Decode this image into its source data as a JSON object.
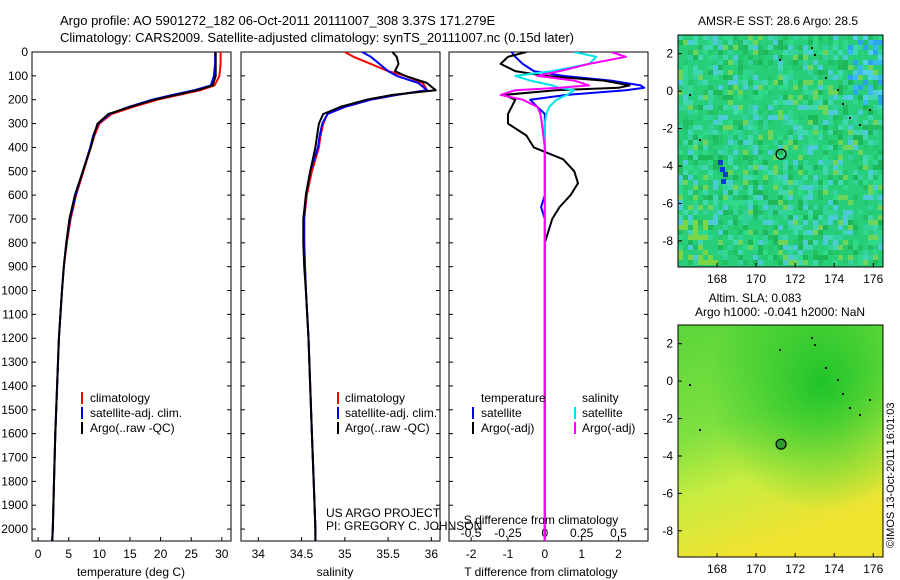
{
  "title_line1": "Argo profile: AO 5901272_182 06-Oct-2011 20111007_308 3.37S 171.279E",
  "title_line2": "Climatology: CARS2009. Satellite-adjusted climatology: synTS_20111007.nc (0.15d later)",
  "depth_ticks": [
    "0",
    "100",
    "200",
    "300",
    "400",
    "500",
    "600",
    "700",
    "800",
    "900",
    "1000",
    "1100",
    "1200",
    "1300",
    "1400",
    "1500",
    "1600",
    "1700",
    "1800",
    "1900",
    "2000"
  ],
  "credit_line1": "US ARGO PROJECT",
  "credit_line2": "PI: GREGORY C. JOHNSON",
  "timestamp": "©IMOS 13-Oct-2011 16:01:03",
  "colors": {
    "climatology": "#ff0000",
    "satellite": "#0000ff",
    "argo": "#000000",
    "sal_sat": "#00e5ee",
    "sal_argo": "#ff00ff"
  },
  "chart_data": [
    {
      "type": "line",
      "id": "temperature",
      "xlabel": "temperature (deg C)",
      "ylabel": "depth",
      "xlim": [
        -1,
        31.5
      ],
      "ylim": [
        2050,
        0
      ],
      "xticks": [
        "0",
        "5",
        "10",
        "15",
        "20",
        "25",
        "30"
      ],
      "legend": [
        "climatology",
        "satellite-adj. clim.",
        "Argo(..raw -QC)"
      ],
      "depth": [
        0,
        20,
        50,
        100,
        140,
        160,
        180,
        200,
        230,
        260,
        300,
        350,
        400,
        500,
        600,
        700,
        800,
        900,
        1000,
        1200,
        1400,
        1600,
        1800,
        2000,
        2050
      ],
      "series": [
        {
          "name": "climatology",
          "values": [
            29.8,
            29.8,
            29.8,
            29.6,
            28.8,
            26.5,
            23,
            19.5,
            15.5,
            12,
            10,
            9.2,
            8.6,
            7.4,
            6.2,
            5.3,
            4.7,
            4.2,
            3.9,
            3.4,
            3.1,
            2.8,
            2.6,
            2.4,
            2.3
          ]
        },
        {
          "name": "satellite-adj. clim.",
          "values": [
            28.9,
            28.9,
            28.9,
            28.7,
            28.2,
            25.5,
            22,
            18.6,
            14.8,
            11.7,
            9.8,
            9.0,
            8.5,
            7.3,
            6.1,
            5.2,
            4.6,
            4.2,
            3.9,
            3.4,
            3.1,
            2.8,
            2.6,
            2.4,
            2.3
          ]
        },
        {
          "name": "Argo(..raw -QC)",
          "values": [
            29.0,
            29.0,
            29.0,
            29.0,
            28.5,
            26,
            22.5,
            19,
            15,
            11.5,
            9.7,
            9.1,
            8.6,
            7.3,
            6.0,
            5.1,
            4.6,
            4.2,
            3.9,
            3.4,
            3.1,
            2.8,
            2.6,
            2.4,
            2.3
          ]
        }
      ]
    },
    {
      "type": "line",
      "id": "salinity",
      "xlabel": "salinity",
      "xlim": [
        33.8,
        36.1
      ],
      "ylim": [
        2050,
        0
      ],
      "xticks": [
        "34",
        "34.5",
        "35",
        "35.5",
        "36"
      ],
      "legend": [
        "climatology",
        "satellite-adj. clim.",
        "Argo(..raw -QC)"
      ],
      "depth": [
        0,
        20,
        50,
        80,
        100,
        130,
        160,
        180,
        200,
        230,
        260,
        300,
        350,
        400,
        500,
        600,
        700,
        800,
        900,
        1000,
        1200,
        1400,
        1600,
        1800,
        2000,
        2050
      ],
      "series": [
        {
          "name": "climatology",
          "values": [
            35.0,
            35.1,
            35.3,
            35.5,
            35.7,
            35.9,
            35.95,
            35.6,
            35.3,
            35.0,
            34.8,
            34.75,
            34.72,
            34.7,
            34.62,
            34.56,
            34.53,
            34.53,
            34.54,
            34.55,
            34.58,
            34.6,
            34.62,
            34.64,
            34.66,
            34.66
          ]
        },
        {
          "name": "satellite-adj. clim.",
          "values": [
            35.2,
            35.3,
            35.4,
            35.5,
            35.6,
            35.85,
            35.95,
            35.6,
            35.3,
            35.0,
            34.8,
            34.74,
            34.71,
            34.69,
            34.6,
            34.55,
            34.53,
            34.53,
            34.54,
            34.55,
            34.58,
            34.6,
            34.62,
            34.64,
            34.66,
            34.66
          ]
        },
        {
          "name": "Argo(..raw -QC)",
          "values": [
            35.55,
            35.6,
            35.62,
            35.58,
            35.7,
            35.95,
            36.05,
            35.55,
            35.25,
            34.95,
            34.75,
            34.7,
            34.68,
            34.66,
            34.6,
            34.55,
            34.52,
            34.52,
            34.53,
            34.55,
            34.58,
            34.6,
            34.62,
            34.64,
            34.66,
            34.66
          ]
        }
      ]
    },
    {
      "type": "line",
      "id": "differences",
      "xlabel": "T difference from climatology",
      "xlabel2": "S difference from climatology",
      "xlim": [
        -2.6,
        2.8
      ],
      "ylim": [
        2050,
        0
      ],
      "xticks_T": [
        "-2",
        "-1",
        "0",
        "1",
        "2"
      ],
      "xticks_S": [
        "-0.5",
        "-0.25",
        "0",
        "0.25",
        "0.5"
      ],
      "legend_T_title": "temperature",
      "legend_S_title": "salinity",
      "legend": [
        "satellite",
        "Argo(-adj)",
        "satellite",
        "Argo(-adj)"
      ],
      "depth": [
        0,
        20,
        50,
        80,
        100,
        120,
        140,
        150,
        160,
        180,
        200,
        230,
        260,
        300,
        350,
        400,
        450,
        500,
        550,
        600,
        650,
        700,
        750,
        800,
        900,
        1000,
        1200,
        1400,
        1600,
        1800,
        2000,
        2050
      ],
      "series": [
        {
          "name": "T satellite",
          "values": [
            -0.9,
            -0.8,
            -0.6,
            -0.3,
            0.5,
            1.8,
            2.6,
            2.7,
            2.2,
            0.6,
            -0.4,
            -0.2,
            0,
            0,
            0,
            0,
            0,
            0,
            0,
            0,
            -0.1,
            0,
            0,
            0,
            0,
            0,
            0,
            0,
            0,
            0,
            0,
            0
          ]
        },
        {
          "name": "T Argo(-adj)",
          "values": [
            -0.5,
            -1.0,
            -1.2,
            -0.8,
            0,
            1.6,
            2.3,
            2.0,
            0.3,
            -1.1,
            -0.8,
            -0.9,
            -1.0,
            -1.0,
            -0.5,
            -0.3,
            0.5,
            0.8,
            0.9,
            0.7,
            0.4,
            0.2,
            0.1,
            0,
            0,
            0,
            0,
            0,
            0,
            0,
            0,
            0
          ]
        },
        {
          "name": "S satellite",
          "values": [
            0.2,
            0.35,
            0.3,
            0.05,
            -0.2,
            -0.1,
            0.05,
            0.1,
            0.2,
            0.15,
            0.08,
            0.03,
            0.01,
            0,
            0,
            0,
            0,
            0,
            0,
            0,
            0,
            0,
            0,
            0,
            0,
            0,
            0,
            0,
            0,
            0,
            0,
            0
          ]
        },
        {
          "name": "S Argo(-adj)",
          "values": [
            0.45,
            0.55,
            0.3,
            0.1,
            -0.05,
            0.2,
            0.3,
            0.1,
            -0.2,
            -0.3,
            -0.15,
            -0.05,
            -0.03,
            -0.02,
            -0.01,
            0,
            0,
            0,
            0,
            0,
            0,
            0,
            0,
            0,
            0,
            0,
            0,
            0,
            0,
            0,
            0,
            0
          ]
        }
      ]
    },
    {
      "type": "heatmap",
      "id": "sst_map",
      "title": "AMSR-E SST: 28.6  Argo: 28.5",
      "xticks": [
        "168",
        "170",
        "172",
        "174",
        "176"
      ],
      "yticks": [
        "2",
        "0",
        "-2",
        "-4",
        "-6",
        "-8"
      ],
      "marker": {
        "lon": 171.279,
        "lat": -3.37
      }
    },
    {
      "type": "heatmap",
      "id": "sla_map",
      "title_line1": "Altim. SLA: 0.083",
      "title_line2": "Argo h1000: -0.041  h2000: NaN",
      "xticks": [
        "168",
        "170",
        "172",
        "174",
        "176"
      ],
      "yticks": [
        "2",
        "0",
        "-2",
        "-4",
        "-6",
        "-8"
      ],
      "marker": {
        "lon": 171.279,
        "lat": -3.37
      }
    }
  ]
}
